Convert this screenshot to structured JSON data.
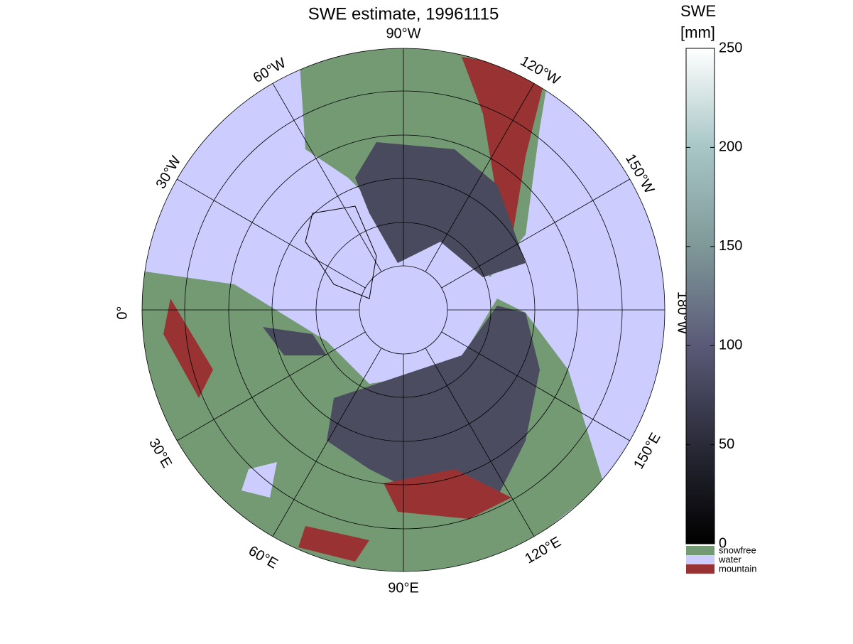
{
  "chart_data": {
    "type": "map",
    "title": "SWE estimate, 19961115",
    "longitude_labels": [
      "90°W",
      "60°W",
      "30°W",
      "0°",
      "30°E",
      "60°E",
      "90°E",
      "120°E",
      "150°E",
      "180°W",
      "150°W",
      "120°W"
    ],
    "colorbar": {
      "label": [
        "SWE",
        "[mm]"
      ],
      "ylim": [
        0,
        250
      ],
      "yticks": [
        0,
        50,
        100,
        150,
        200,
        250
      ]
    },
    "legend": [
      {
        "name": "snowfree",
        "color": "#749a74"
      },
      {
        "name": "water",
        "color": "#ccccff"
      },
      {
        "name": "mountain",
        "color": "#993333"
      }
    ]
  }
}
